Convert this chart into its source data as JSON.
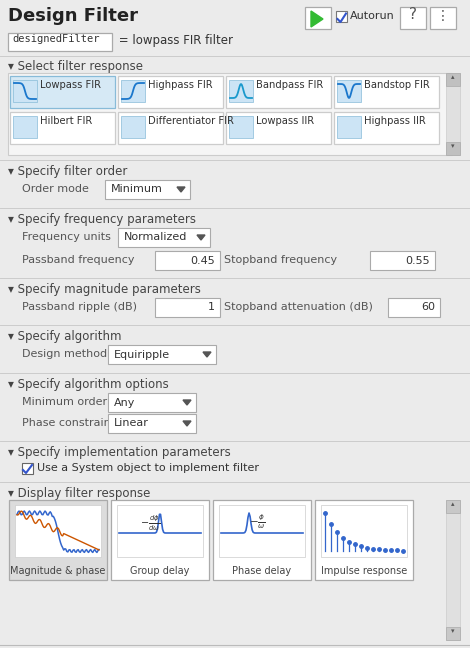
{
  "title": "Design Filter",
  "bg_color": "#ebebeb",
  "white": "#ffffff",
  "section_headers": [
    "Select filter response",
    "Specify filter order",
    "Specify frequency parameters",
    "Specify magnitude parameters",
    "Specify algorithm",
    "Specify algorithm options",
    "Specify implementation parameters",
    "Display filter response"
  ],
  "filter_buttons_row1": [
    "Lowpass FIR",
    "Highpass FIR",
    "Bandpass FIR",
    "Bandstop FIR"
  ],
  "filter_buttons_row2": [
    "Hilbert FIR",
    "Differentiator FIR",
    "Lowpass IIR",
    "Highpass IIR"
  ],
  "selected_filter": "Lowpass FIR",
  "order_mode": "Minimum",
  "freq_units": "Normalized",
  "passband_freq": "0.45",
  "stopband_freq": "0.55",
  "passband_ripple": "1",
  "stopband_atten": "60",
  "design_method": "Equiripple",
  "min_order": "Any",
  "phase_constraint": "Linear",
  "display_buttons": [
    "Magnitude & phase",
    "Group delay",
    "Phase delay",
    "Impulse response"
  ],
  "mono_label": "designedFilter",
  "subtitle_rest": " = lowpass FIR filter"
}
